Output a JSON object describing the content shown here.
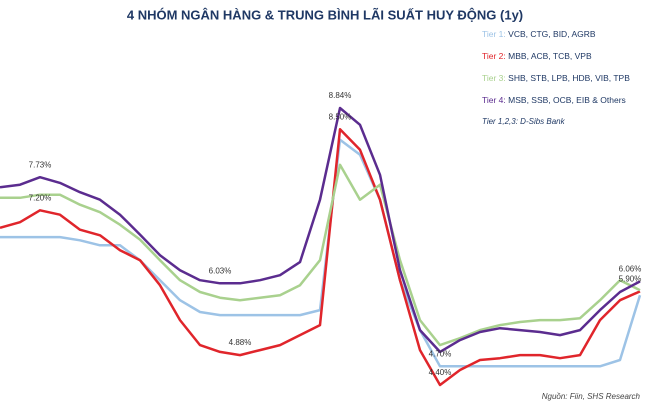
{
  "chart_data": {
    "type": "line",
    "title": "4 NHÓM NGÂN HÀNG & TRUNG BÌNH LÃI SUẤT HUY ĐỘNG (1y)",
    "note": "Tier 1,2,3: D-Sibs Bank",
    "source": "Nguồn: Fiin, SHS Research",
    "series": [
      {
        "name": "Tier 1:",
        "members": "VCB, CTG, BID, AGRB",
        "color": "#9dc3e6",
        "values": [
          6.77,
          6.77,
          6.77,
          6.77,
          6.72,
          6.64,
          6.64,
          6.4,
          6.08,
          5.76,
          5.57,
          5.52,
          5.52,
          5.52,
          5.52,
          5.52,
          5.6,
          8.33,
          8.09,
          7.37,
          6.08,
          5.28,
          4.7,
          4.7,
          4.7,
          4.7,
          4.7,
          4.7,
          4.7,
          4.7,
          4.7,
          4.8,
          5.84
        ],
        "value_labels": [
          null,
          null,
          null,
          null,
          null,
          null,
          null,
          null,
          null,
          null,
          null,
          null,
          null,
          null,
          null,
          null,
          null,
          null,
          null,
          null,
          null,
          null,
          "4.70%",
          null,
          null,
          null,
          null,
          null,
          null,
          null,
          null,
          null,
          null
        ]
      },
      {
        "name": "Tier 2:",
        "members": "MBB, ACB, TCB, VPB",
        "color": "#e0252b",
        "values": [
          6.92,
          7.01,
          7.2,
          7.13,
          6.89,
          6.8,
          6.56,
          6.4,
          6.0,
          5.44,
          5.04,
          4.93,
          4.88,
          4.96,
          5.04,
          5.2,
          5.36,
          8.5,
          8.17,
          7.37,
          6.08,
          4.96,
          4.4,
          4.64,
          4.8,
          4.83,
          4.88,
          4.88,
          4.83,
          4.88,
          5.44,
          5.76,
          5.9
        ],
        "value_labels": [
          null,
          null,
          "7.20%",
          null,
          null,
          null,
          null,
          null,
          null,
          null,
          null,
          null,
          "4.88%",
          null,
          null,
          null,
          null,
          "8.50%",
          null,
          null,
          null,
          null,
          "4.40%",
          null,
          null,
          null,
          null,
          null,
          null,
          null,
          null,
          null,
          "5.90%"
        ]
      },
      {
        "name": "Tier 3:",
        "members": "SHB, STB, LPB, HDB, VIB, TPB",
        "color": "#a9d18e",
        "values": [
          7.4,
          7.4,
          7.45,
          7.45,
          7.29,
          7.17,
          6.97,
          6.73,
          6.4,
          6.08,
          5.89,
          5.8,
          5.76,
          5.8,
          5.84,
          6.0,
          6.4,
          7.93,
          7.37,
          7.61,
          6.4,
          5.44,
          5.04,
          5.15,
          5.28,
          5.36,
          5.41,
          5.44,
          5.44,
          5.47,
          5.76,
          6.08,
          5.92
        ],
        "value_labels": [
          null,
          null,
          null,
          null,
          null,
          null,
          null,
          null,
          null,
          null,
          null,
          null,
          null,
          null,
          null,
          null,
          null,
          null,
          null,
          null,
          null,
          null,
          null,
          null,
          null,
          null,
          null,
          null,
          null,
          null,
          null,
          null,
          null
        ]
      },
      {
        "name": "Tier 4:",
        "members": "MSB, SSB, OCB, EIB & Others",
        "color": "#5b2c8f",
        "values": [
          7.57,
          7.61,
          7.73,
          7.64,
          7.49,
          7.37,
          7.13,
          6.81,
          6.48,
          6.24,
          6.08,
          6.03,
          6.03,
          6.08,
          6.16,
          6.37,
          7.37,
          8.84,
          8.57,
          7.77,
          6.24,
          5.28,
          4.93,
          5.12,
          5.25,
          5.31,
          5.28,
          5.25,
          5.2,
          5.28,
          5.6,
          5.89,
          6.06
        ],
        "value_labels": [
          null,
          null,
          "7.73%",
          null,
          null,
          null,
          null,
          null,
          null,
          null,
          null,
          "6.03%",
          null,
          null,
          null,
          null,
          null,
          "8.84%",
          null,
          null,
          null,
          null,
          null,
          null,
          null,
          null,
          null,
          null,
          null,
          null,
          null,
          null,
          "6.06%"
        ]
      }
    ]
  }
}
